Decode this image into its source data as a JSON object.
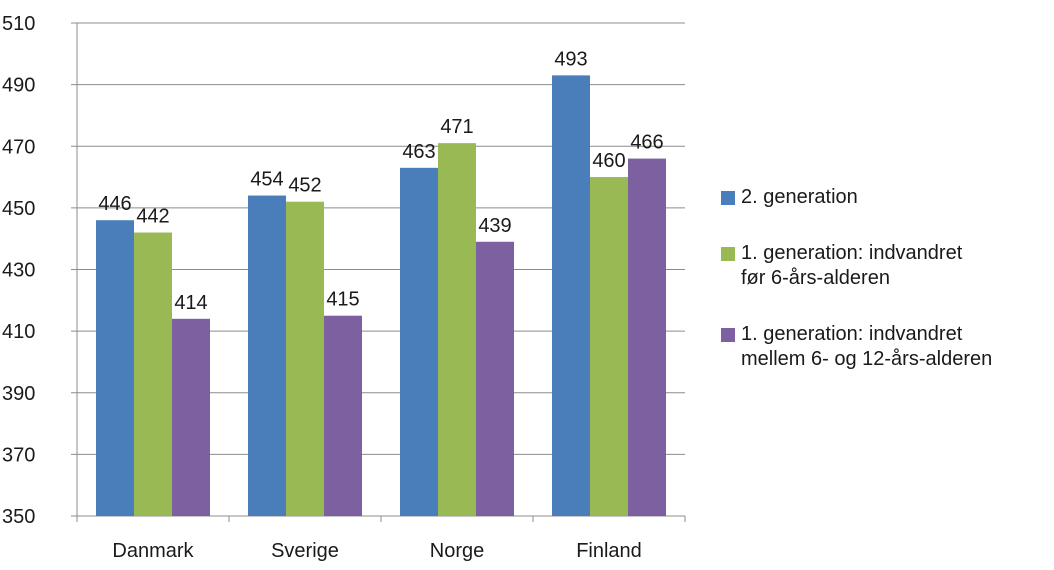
{
  "chart_data": {
    "type": "bar",
    "categories": [
      "Danmark",
      "Sverige",
      "Norge",
      "Finland"
    ],
    "series": [
      {
        "name": "2. generation",
        "values": [
          446,
          454,
          463,
          493
        ],
        "color": "#4a7ebb"
      },
      {
        "name": "1. generation: indvandret\nfør 6-års-alderen",
        "values": [
          442,
          452,
          471,
          460
        ],
        "color": "#98b954"
      },
      {
        "name": "1. generation: indvandret\nmellem 6- og 12-års-alderen",
        "values": [
          414,
          415,
          439,
          466
        ],
        "color": "#7d60a0"
      }
    ],
    "data_labels": true,
    "ylim": [
      350,
      510
    ],
    "yticks": [
      350,
      370,
      390,
      410,
      430,
      450,
      470,
      490,
      510
    ],
    "grid": true,
    "legend_position": "right",
    "title": "",
    "xlabel": "",
    "ylabel": ""
  }
}
